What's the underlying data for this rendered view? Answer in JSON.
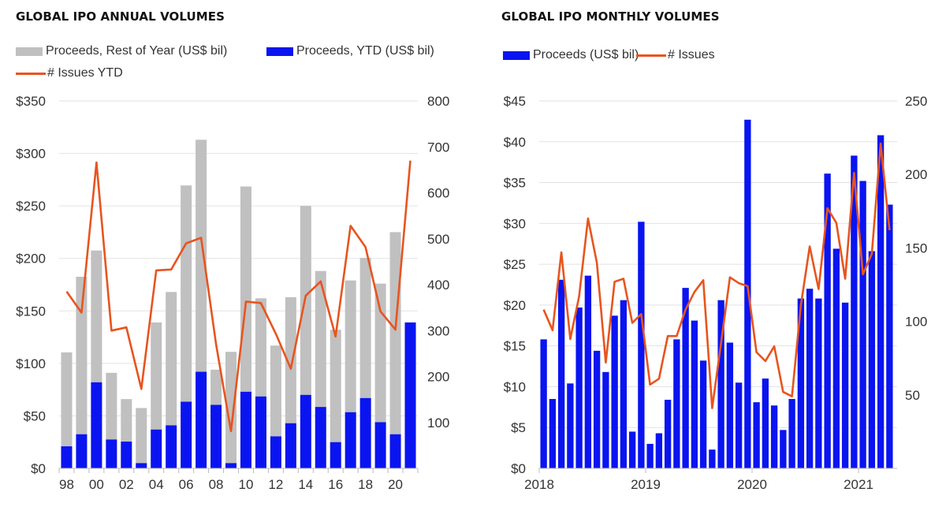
{
  "colors": {
    "gray": "#c0c0c0",
    "blue": "#0a14f0",
    "orange": "#e8541e",
    "grid": "#e2e2e2",
    "axis": "#bbbbbb"
  },
  "chart_data": [
    {
      "id": "annual",
      "type": "bar",
      "stacked": true,
      "title": "GLOBAL IPO ANNUAL VOLUMES",
      "legend": [
        {
          "label": "Proceeds, Rest of Year (US$ bil)",
          "kind": "bar",
          "color": "#c0c0c0"
        },
        {
          "label": "Proceeds, YTD (US$ bil)",
          "kind": "bar",
          "color": "#0a14f0"
        },
        {
          "label": "# Issues YTD",
          "kind": "line",
          "color": "#e8541e"
        }
      ],
      "legend_position": "top",
      "categories": [
        "98",
        "99",
        "00",
        "01",
        "02",
        "03",
        "04",
        "05",
        "06",
        "07",
        "08",
        "09",
        "10",
        "11",
        "12",
        "13",
        "14",
        "15",
        "16",
        "17",
        "18",
        "19",
        "20",
        "21"
      ],
      "x_tick_labels": [
        "98",
        "00",
        "02",
        "04",
        "06",
        "08",
        "10",
        "12",
        "14",
        "16",
        "18",
        "20"
      ],
      "series": [
        {
          "name": "Proceeds, YTD (US$ bil)",
          "axis": "left",
          "type": "bar",
          "values": [
            21,
            32.5,
            82,
            27.5,
            25.5,
            5,
            37,
            41,
            63.5,
            92,
            60.5,
            5,
            73,
            68.5,
            30.5,
            43,
            70,
            58.5,
            25,
            53.5,
            67,
            44,
            32.5,
            139
          ]
        },
        {
          "name": "Proceeds, Rest of Year (US$ bil)",
          "axis": "left",
          "type": "bar",
          "values": [
            89.5,
            150,
            125.5,
            63.5,
            40.5,
            52.5,
            102,
            127,
            206,
            221,
            33.5,
            106,
            195.5,
            93.5,
            86.5,
            120,
            180,
            129.5,
            107,
            125.5,
            133.5,
            132,
            192.5,
            0
          ]
        },
        {
          "name": "# Issues YTD",
          "axis": "right",
          "type": "line",
          "values": [
            385,
            339,
            666,
            300,
            307,
            173,
            431,
            433,
            490,
            502,
            270,
            81,
            363,
            360,
            293,
            217,
            376,
            407,
            287,
            528,
            482,
            342,
            302,
            670
          ]
        }
      ],
      "left_axis": {
        "ylim": [
          0,
          350
        ],
        "ticks": [
          "$0",
          "$50",
          "$100",
          "$150",
          "$200",
          "$250",
          "$300",
          "$350"
        ]
      },
      "right_axis": {
        "ylim": [
          0,
          800
        ],
        "ticks": [
          "100",
          "200",
          "300",
          "400",
          "500",
          "600",
          "700",
          "800"
        ]
      },
      "grid": true
    },
    {
      "id": "monthly",
      "type": "bar",
      "title": "GLOBAL IPO MONTHLY VOLUMES",
      "legend": [
        {
          "label": "Proceeds (US$ bil)",
          "kind": "bar",
          "color": "#0a14f0"
        },
        {
          "label": "# Issues",
          "kind": "line",
          "color": "#e8541e"
        }
      ],
      "legend_position": "top",
      "x_range": "Jan 2018 - Apr 2021 (monthly)",
      "x_tick_labels": [
        "2018",
        "2019",
        "2020",
        "2021"
      ],
      "series": [
        {
          "name": "Proceeds (US$ bil)",
          "axis": "left",
          "type": "bar",
          "values": [
            15.8,
            8.5,
            23.1,
            10.4,
            19.7,
            23.6,
            14.4,
            11.8,
            18.7,
            20.6,
            4.5,
            30.2,
            3.0,
            4.3,
            8.4,
            15.8,
            22.1,
            18.1,
            13.2,
            2.3,
            20.6,
            15.4,
            10.5,
            42.7,
            8.1,
            11.0,
            7.7,
            4.7,
            8.5,
            20.8,
            22.0,
            20.8,
            36.1,
            26.9,
            20.3,
            38.3,
            35.2,
            26.6,
            40.8,
            32.3
          ]
        },
        {
          "name": "# Issues",
          "axis": "right",
          "type": "line",
          "values": [
            108,
            94,
            147,
            88,
            117,
            170,
            140,
            72,
            127,
            129,
            99,
            105,
            57,
            61,
            90,
            90,
            108,
            120,
            128,
            41,
            85,
            130,
            126,
            124,
            79,
            73,
            83,
            52,
            49,
            111,
            151,
            122,
            177,
            167,
            129,
            201,
            132,
            146,
            221,
            162
          ]
        }
      ],
      "left_axis": {
        "ylim": [
          0,
          45
        ],
        "ticks": [
          "$0",
          "$5",
          "$10",
          "$15",
          "$20",
          "$25",
          "$30",
          "$35",
          "$40",
          "$45"
        ]
      },
      "right_axis": {
        "ylim": [
          0,
          250
        ],
        "ticks": [
          "50",
          "100",
          "150",
          "200",
          "250"
        ]
      },
      "grid": true
    }
  ]
}
